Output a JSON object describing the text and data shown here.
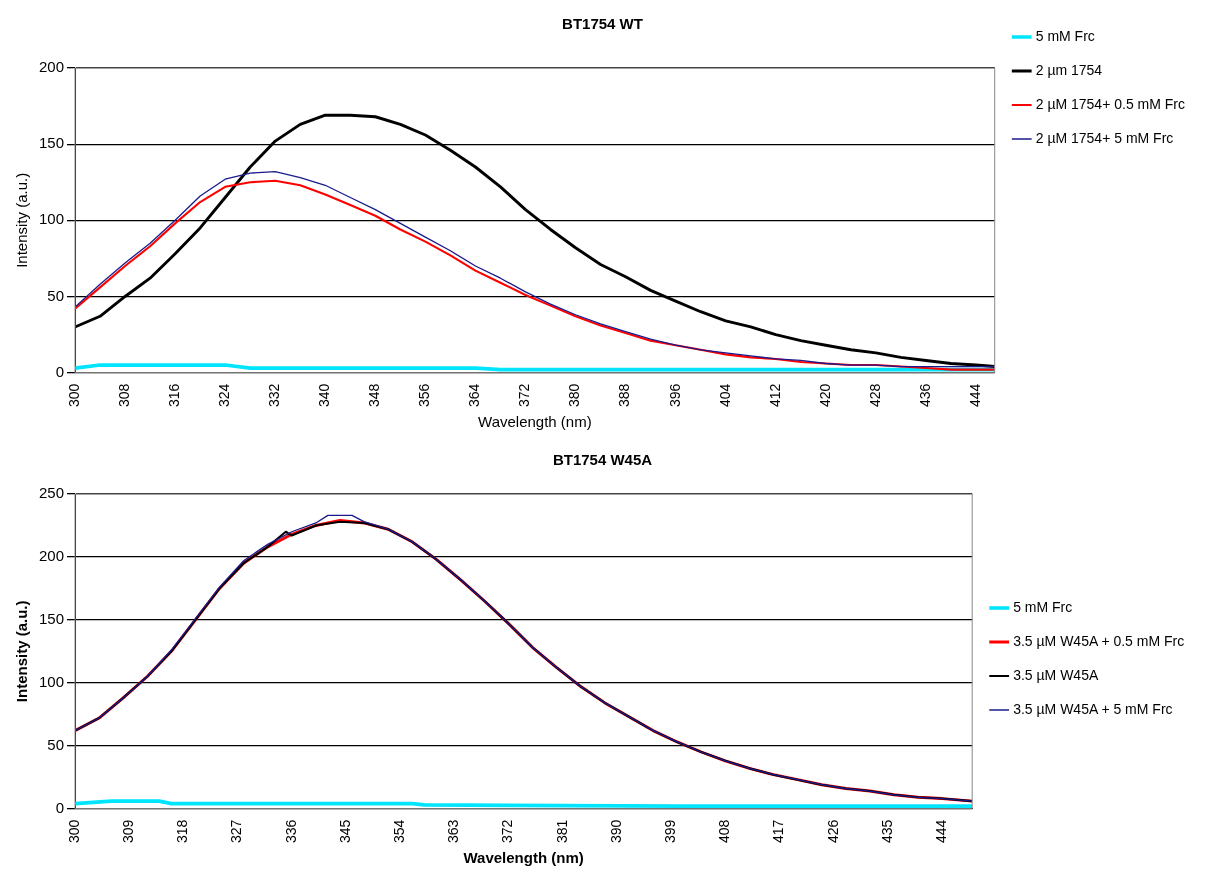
{
  "chart_data": [
    {
      "type": "line",
      "title": "BT1754 WT",
      "xlabel": "Wavelength (nm)",
      "ylabel": "Intensity (a.u.)",
      "xlim": [
        300,
        447
      ],
      "xticks": [
        300,
        308,
        316,
        324,
        332,
        340,
        348,
        356,
        364,
        372,
        380,
        388,
        396,
        404,
        412,
        420,
        428,
        436,
        444
      ],
      "ylim": [
        0,
        200
      ],
      "yticks": [
        0,
        50,
        100,
        150,
        200
      ],
      "grid": "y",
      "legend": "right",
      "marker": "none",
      "series": [
        {
          "name": "5 mM Frc",
          "color": "#00e5ff",
          "x": [
            300,
            304,
            324,
            328,
            332,
            364,
            368,
            447
          ],
          "values": [
            3,
            5,
            5,
            3,
            3,
            3,
            2,
            2
          ]
        },
        {
          "name": "2 µm 1754",
          "color": "#000000",
          "x": [
            300,
            304,
            308,
            312,
            316,
            320,
            324,
            328,
            332,
            336,
            340,
            344,
            348,
            352,
            356,
            360,
            364,
            368,
            372,
            376,
            380,
            384,
            388,
            392,
            396,
            400,
            404,
            408,
            412,
            416,
            420,
            424,
            428,
            432,
            436,
            440,
            444,
            447
          ],
          "values": [
            30,
            37,
            50,
            62,
            78,
            95,
            115,
            135,
            152,
            163,
            169,
            169,
            168,
            163,
            156,
            146,
            135,
            122,
            107,
            94,
            82,
            71,
            63,
            54,
            47,
            40,
            34,
            30,
            25,
            21,
            18,
            15,
            13,
            10,
            8,
            6,
            5,
            4
          ]
        },
        {
          "name": "2 µM 1754+ 0.5 mM Frc",
          "color": "#ff0000",
          "x": [
            300,
            304,
            308,
            312,
            316,
            320,
            324,
            328,
            332,
            336,
            340,
            344,
            348,
            352,
            356,
            360,
            364,
            368,
            372,
            376,
            380,
            384,
            388,
            392,
            396,
            400,
            404,
            408,
            412,
            416,
            420,
            424,
            428,
            432,
            436,
            440,
            444,
            447
          ],
          "values": [
            42,
            56,
            70,
            83,
            98,
            112,
            122,
            125,
            126,
            123,
            117,
            110,
            103,
            94,
            86,
            77,
            67,
            59,
            51,
            44,
            37,
            31,
            26,
            21,
            18,
            15,
            12,
            10,
            9,
            7,
            6,
            5,
            5,
            4,
            3,
            2,
            2,
            2
          ]
        },
        {
          "name": "2 µM 1754+ 5 mM Frc",
          "color": "#1a1a8c",
          "x": [
            300,
            304,
            308,
            312,
            316,
            320,
            324,
            328,
            332,
            336,
            340,
            344,
            348,
            352,
            356,
            360,
            364,
            368,
            372,
            376,
            380,
            384,
            388,
            392,
            396,
            400,
            404,
            408,
            412,
            416,
            420,
            424,
            428,
            432,
            436,
            440,
            444,
            447
          ],
          "values": [
            43,
            58,
            72,
            85,
            100,
            116,
            127,
            131,
            132,
            128,
            123,
            115,
            107,
            98,
            89,
            80,
            70,
            62,
            53,
            45,
            38,
            32,
            27,
            22,
            18,
            15,
            13,
            11,
            9,
            8,
            6,
            5,
            5,
            4,
            4,
            4,
            4,
            4
          ]
        }
      ]
    },
    {
      "type": "line",
      "title": "BT1754 W45A",
      "xlabel": "Wavelength (nm)",
      "ylabel": "Intensity (a.u.)",
      "xlim": [
        300,
        449
      ],
      "xticks": [
        300,
        309,
        318,
        327,
        336,
        345,
        354,
        363,
        372,
        381,
        390,
        399,
        408,
        417,
        426,
        435,
        444
      ],
      "ylim": [
        0,
        250
      ],
      "yticks": [
        0,
        50,
        100,
        150,
        200,
        250
      ],
      "grid": "y",
      "legend": "right",
      "marker": "none",
      "series": [
        {
          "name": "5 mM Frc",
          "color": "#00e5ff",
          "x": [
            300,
            306,
            314,
            316,
            356,
            358,
            400,
            449
          ],
          "values": [
            4,
            6,
            6,
            4,
            4,
            3,
            2,
            2
          ]
        },
        {
          "name": "3.5 µM W45A + 0.5 mM Frc",
          "color": "#ff0000",
          "x": [
            300,
            304,
            308,
            312,
            316,
            320,
            324,
            328,
            332,
            336,
            340,
            344,
            348,
            352,
            356,
            360,
            364,
            368,
            372,
            376,
            380,
            384,
            388,
            392,
            396,
            400,
            404,
            408,
            412,
            416,
            420,
            424,
            428,
            432,
            436,
            440,
            444,
            449
          ],
          "values": [
            62,
            72,
            88,
            105,
            125,
            150,
            175,
            195,
            208,
            218,
            225,
            229,
            227,
            222,
            212,
            198,
            182,
            165,
            147,
            128,
            112,
            97,
            84,
            73,
            62,
            53,
            45,
            38,
            32,
            27,
            23,
            19,
            16,
            14,
            11,
            9,
            8,
            6
          ]
        },
        {
          "name": "3.5 µM W45A",
          "color": "#000000",
          "x": [
            300,
            304,
            308,
            312,
            316,
            320,
            324,
            328,
            332,
            335,
            336,
            340,
            344,
            348,
            352,
            356,
            360,
            364,
            368,
            372,
            376,
            380,
            384,
            388,
            392,
            396,
            400,
            404,
            408,
            412,
            416,
            420,
            424,
            428,
            432,
            436,
            440,
            444,
            449
          ],
          "values": [
            62,
            72,
            88,
            105,
            125,
            150,
            175,
            195,
            208,
            220,
            217,
            225,
            228,
            227,
            222,
            212,
            198,
            182,
            165,
            147,
            128,
            112,
            97,
            84,
            73,
            62,
            53,
            45,
            38,
            32,
            27,
            23,
            19,
            16,
            14,
            11,
            9,
            8,
            6
          ]
        },
        {
          "name": "3.5 µM W45A + 5 mM Frc",
          "color": "#1a1a8c",
          "x": [
            300,
            304,
            308,
            312,
            316,
            320,
            324,
            328,
            332,
            336,
            340,
            342,
            346,
            348,
            352,
            356,
            360,
            364,
            368,
            372,
            376,
            380,
            384,
            388,
            392,
            396,
            400,
            404,
            408,
            412,
            416,
            420,
            424,
            428,
            432,
            436,
            440,
            444,
            449
          ],
          "values": [
            62,
            72,
            88,
            105,
            126,
            151,
            176,
            197,
            210,
            220,
            227,
            233,
            233,
            228,
            222,
            212,
            198,
            182,
            165,
            147,
            128,
            112,
            97,
            84,
            73,
            62,
            53,
            45,
            38,
            32,
            27,
            23,
            19,
            16,
            14,
            11,
            9,
            8,
            6
          ]
        }
      ]
    }
  ]
}
